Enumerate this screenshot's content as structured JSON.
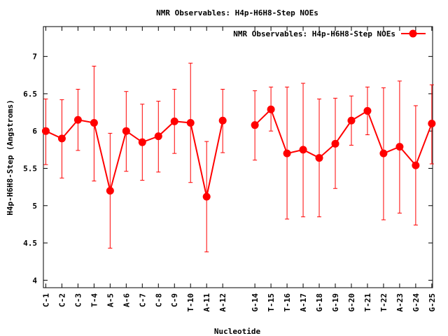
{
  "chart_data": {
    "type": "line",
    "title": "NMR Observables: H4p-H6H8-Step NOEs",
    "xlabel": "Nucleotide",
    "ylabel": "H4p-H6H8-Step (Angstroms)",
    "ylim": [
      3.9,
      7.4
    ],
    "yticks": [
      4,
      4.5,
      5,
      5.5,
      6,
      6.5,
      7
    ],
    "grid": false,
    "legend_position": "top-right",
    "line_color": "#ff0000",
    "categories": [
      "C-1",
      "C-2",
      "C-3",
      "T-4",
      "A-5",
      "A-6",
      "C-7",
      "C-8",
      "C-9",
      "T-10",
      "A-11",
      "A-12",
      "G-14",
      "T-15",
      "T-16",
      "A-17",
      "G-18",
      "G-19",
      "G-20",
      "T-21",
      "T-22",
      "A-23",
      "G-24",
      "G-25"
    ],
    "x": [
      1,
      2,
      3,
      4,
      5,
      6,
      7,
      8,
      9,
      10,
      11,
      12,
      14,
      15,
      16,
      17,
      18,
      19,
      20,
      21,
      22,
      23,
      24,
      25
    ],
    "series": [
      {
        "name": "NMR Observables: H4p-H6H8-Step NOEs",
        "segments": [
          [
            0,
            11
          ],
          [
            12,
            23
          ]
        ],
        "values": [
          6.0,
          5.9,
          6.15,
          6.11,
          5.2,
          6.0,
          5.85,
          5.93,
          6.13,
          6.11,
          5.12,
          6.14,
          6.08,
          6.29,
          5.7,
          5.75,
          5.64,
          5.83,
          6.14,
          6.27,
          5.7,
          5.79,
          5.54,
          6.1
        ],
        "err_low": [
          5.55,
          5.37,
          5.74,
          5.33,
          4.43,
          5.46,
          5.34,
          5.45,
          5.7,
          5.31,
          4.38,
          5.71,
          5.61,
          6.0,
          4.82,
          4.85,
          4.85,
          5.23,
          5.81,
          5.95,
          4.81,
          4.9,
          4.74,
          5.56
        ],
        "err_high": [
          6.43,
          6.42,
          6.56,
          6.87,
          5.97,
          6.53,
          6.36,
          6.4,
          6.56,
          6.91,
          5.86,
          6.56,
          6.54,
          6.59,
          6.59,
          6.64,
          6.43,
          6.44,
          6.47,
          6.59,
          6.58,
          6.67,
          6.34,
          6.62
        ]
      }
    ]
  }
}
